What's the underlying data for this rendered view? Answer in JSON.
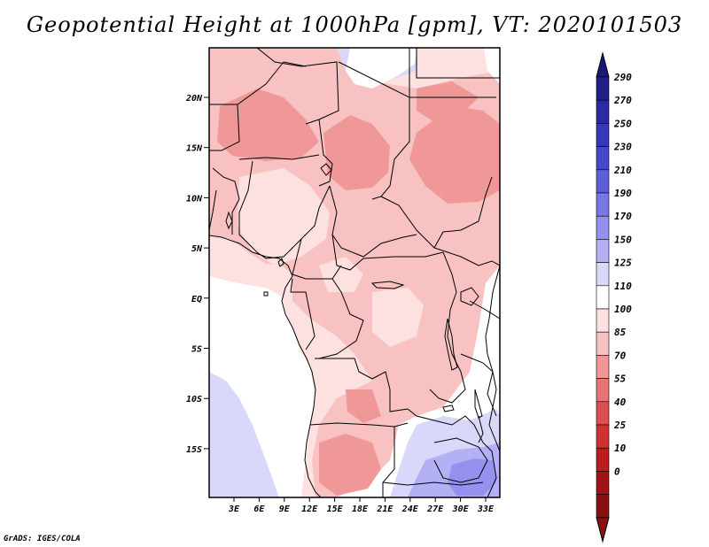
{
  "title": "Geopotential Height at 1000hPa [gpm], VT: 2020101503",
  "credit": "GrADS: IGES/COLA",
  "map": {
    "lat_labels": [
      "20N",
      "15N",
      "10N",
      "5N",
      "EQ",
      "5S",
      "10S",
      "15S"
    ],
    "lon_labels": [
      "3E",
      "6E",
      "9E",
      "12E",
      "15E",
      "18E",
      "21E",
      "24E",
      "27E",
      "30E",
      "33E"
    ],
    "lon_range_deg": [
      0,
      35
    ],
    "lat_range_deg": [
      -20,
      24
    ]
  },
  "colorbar": {
    "labels": [
      "290",
      "270",
      "250",
      "230",
      "210",
      "190",
      "170",
      "150",
      "125",
      "110",
      "100",
      "85",
      "70",
      "55",
      "40",
      "25",
      "10",
      "0"
    ],
    "colors": [
      "#211e88",
      "#2b2ba1",
      "#3737b9",
      "#4747c9",
      "#5e5ed8",
      "#7a78e4",
      "#9690ee",
      "#b4b0f4",
      "#d8d8fa",
      "#ffffff",
      "#fde0e0",
      "#f9c2c2",
      "#f09898",
      "#e67474",
      "#dc5050",
      "#d03232",
      "#bc1e1e",
      "#a01414",
      "#881010"
    ],
    "top_arrow_color": "#1a1878",
    "bottom_arrow_color": "#8a1010"
  },
  "palette": {
    "ocean": "#ffffff",
    "pink_light": "#fde0e0",
    "pink": "#f9c2c2",
    "pink_dark": "#f09898",
    "lavender": "#d8d8fa",
    "violet": "#b4b0f4",
    "violet_dark": "#9690ee",
    "border": "#000000"
  }
}
